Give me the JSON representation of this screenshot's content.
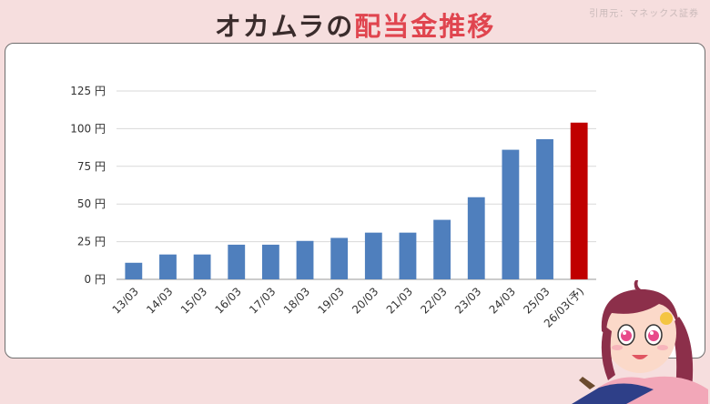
{
  "header": {
    "title_prefix": "オカムラの",
    "title_accent": "配当金推移",
    "source": "引用元：マネックス証券"
  },
  "colors": {
    "actual_bar": "#4f7fbd",
    "forecast_bar": "#c00000",
    "title_accent": "#e0454f",
    "background": "#f6dede"
  },
  "chart_data": {
    "type": "bar",
    "title": "",
    "xlabel": "",
    "ylabel": "",
    "ylim": [
      0,
      125
    ],
    "grid": true,
    "yticks": [
      {
        "value": 0,
        "label": "0 円"
      },
      {
        "value": 25,
        "label": "25 円"
      },
      {
        "value": 50,
        "label": "50 円"
      },
      {
        "value": 75,
        "label": "75 円"
      },
      {
        "value": 100,
        "label": "100 円"
      },
      {
        "value": 125,
        "label": "125 円"
      }
    ],
    "categories": [
      "13/03",
      "14/03",
      "15/03",
      "16/03",
      "17/03",
      "18/03",
      "19/03",
      "20/03",
      "21/03",
      "22/03",
      "23/03",
      "24/03",
      "25/03",
      "26/03(予)"
    ],
    "values": [
      11,
      16.5,
      16.5,
      23,
      23,
      25.5,
      27.5,
      31,
      31,
      39.5,
      54.5,
      86,
      93,
      104
    ],
    "forecast_flags": [
      false,
      false,
      false,
      false,
      false,
      false,
      false,
      false,
      false,
      false,
      false,
      false,
      false,
      true
    ]
  }
}
